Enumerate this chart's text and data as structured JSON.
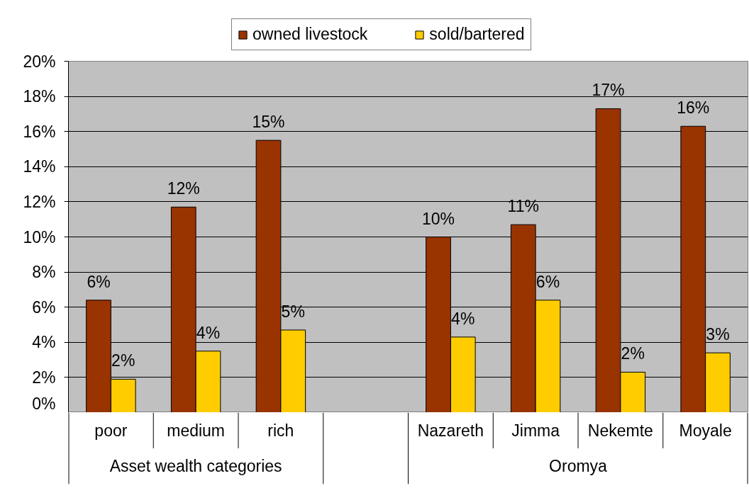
{
  "chart_data": {
    "type": "bar",
    "categories": [
      "poor",
      "medium",
      "rich",
      null,
      "Nazareth",
      "Jimma",
      "Nekemte",
      "Moyale"
    ],
    "series": [
      {
        "name": "owned livestock",
        "color": "#993300",
        "values": [
          6.4,
          11.7,
          15.5,
          null,
          10.0,
          10.7,
          17.3,
          16.3
        ],
        "value_labels": [
          "6%",
          "12%",
          "15%",
          null,
          "10%",
          "11%",
          "17%",
          "16%"
        ]
      },
      {
        "name": "sold/bartered",
        "color": "#ffcc00",
        "values": [
          1.9,
          3.5,
          4.7,
          null,
          4.3,
          6.4,
          2.3,
          3.4
        ],
        "value_labels": [
          "2%",
          "4%",
          "5%",
          null,
          "4%",
          "6%",
          "2%",
          "3%"
        ]
      }
    ],
    "ylim": [
      0,
      20
    ],
    "yticks": [
      {
        "value": 0,
        "label": "0%"
      },
      {
        "value": 2,
        "label": "2%"
      },
      {
        "value": 4,
        "label": "4%"
      },
      {
        "value": 6,
        "label": "6%"
      },
      {
        "value": 8,
        "label": "8%"
      },
      {
        "value": 10,
        "label": "10%"
      },
      {
        "value": 12,
        "label": "12%"
      },
      {
        "value": 14,
        "label": "14%"
      },
      {
        "value": 16,
        "label": "16%"
      },
      {
        "value": 18,
        "label": "18%"
      },
      {
        "value": 20,
        "label": "20%"
      }
    ],
    "grid": "y",
    "legend": "top",
    "annotations": [
      "Asset wealth categories",
      "Oromya"
    ]
  }
}
